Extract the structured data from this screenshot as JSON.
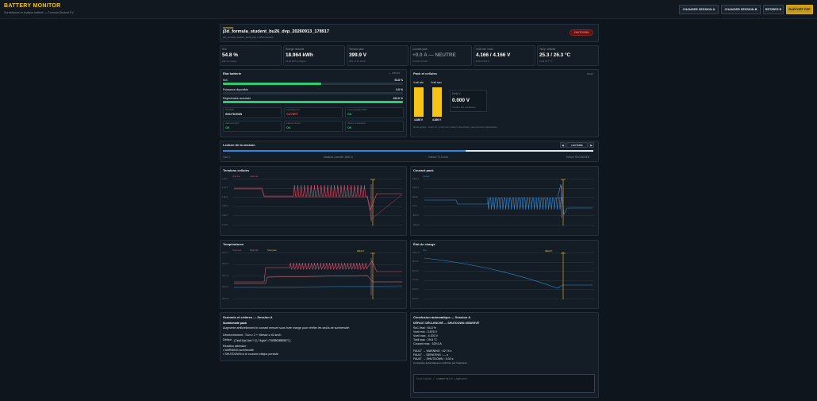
{
  "header": {
    "title": "BATTERY MONITOR",
    "subtitle": "Surveillance et analyse batterie — Formula Student EV",
    "buttons": [
      "CHANGER SESSION A",
      "CHANGER SESSION B",
      "RETIRER B",
      "RAPPORT PDF"
    ]
  },
  "session": {
    "label": "SESSION",
    "name": "j3d_formula_student_bu26_dvp_20260913_178917",
    "sub": "j3d_formula_student_bu26_dvp • 2150 mesures",
    "status": "SHUTDOWN"
  },
  "kpis": [
    {
      "label": "SoC",
      "value": "54.8 %",
      "sub": "État de charge"
    },
    {
      "label": "Énergie restante",
      "value": "18.964 kWh",
      "sub": "34.60 kWh configuré"
    },
    {
      "label": "Tension pack",
      "value": "399.9 V",
      "sub": "96S • 4.16 V/cell"
    },
    {
      "label": "Courant pack",
      "value": "+0.0 A — NEUTRE",
      "sub": "Courbe 0.0 kW"
    },
    {
      "label": "Vcell min / max",
      "value": "4.166 / 4.166 V",
      "sub": "Delta 0.000 V"
    },
    {
      "label": "Temp. cellules",
      "value": "25.3 / 26.3 °C",
      "sub": "Pack 25.7 °C"
    }
  ],
  "etat": {
    "title": "État batterie",
    "time": "~~ 1:58:29.1",
    "rows": [
      {
        "label": "SoC",
        "value": "54.8 %",
        "pct": 54.8
      },
      {
        "label": "Puissance disponible",
        "value": "0.0 %",
        "pct": 0
      },
      {
        "label": "Régénération autorisée",
        "value": "100.0 %",
        "pct": 100
      }
    ],
    "stats": [
      {
        "label": "État BMS",
        "value": "SHUTDOWN",
        "cls": "white"
      },
      {
        "label": "Contacteur HV",
        "value": "OUVERT",
        "cls": "bad"
      },
      {
        "label": "Communication BMS",
        "value": "OK",
        "cls": "ok"
      },
      {
        "label": "Alarme tension",
        "value": "OK",
        "cls": "ok"
      },
      {
        "label": "Alarme courant",
        "value": "OK",
        "cls": "ok"
      },
      {
        "label": "Alarme température",
        "value": "OK",
        "cls": "ok"
      }
    ]
  },
  "pack": {
    "title": "Pack et cellules",
    "badge": "96S1P",
    "vmin_label": "Vcell min",
    "vmax_label": "Vcell max",
    "vmin": "4.166 V",
    "vmax": "4.166 V",
    "vmin_frac": 1.0,
    "vmax_frac": 1.0,
    "delta_label": "Delta V",
    "delta_value": "0.000 V",
    "delta_sub": "Cellules très équilibrées",
    "note": "Mode agrégé : Vcell min / Vcell max / Delta V disponibles, sans tensions individuelles."
  },
  "lecture": {
    "title": "Lecture de la session",
    "btn_prev": "◀",
    "btn_play": "LECTURE",
    "btn_next": "▶",
    "progress": 0.655,
    "tour": "Tour 2",
    "distance": "Distance cumulée 1620 m",
    "vitesse": "Vitesse 73.9 km/h",
    "defaut": "Défaut TRIGGERED"
  },
  "charts": [
    {
      "title": "Tensions cellules",
      "legend": [
        "Vcell min",
        "Vcell max"
      ],
      "ticks": [
        "4.20 V",
        "4.10 V",
        "4.00 V",
        "3.90 V",
        "3.80 V",
        "3.70 V"
      ]
    },
    {
      "title": "Courant pack",
      "legend": [
        "Courant"
      ],
      "ticks": [
        "150.0 A",
        "100.0 A",
        "50.0 A",
        "0.0 A",
        "-50.0 A",
        "-100.0 A"
      ]
    },
    {
      "title": "Températures",
      "legend": [
        "Temp max",
        "Temp min",
        "Temp pack"
      ],
      "ticks": [
        "40.0 °C",
        "35.0 °C",
        "30.0 °C",
        "25.0 °C",
        "20.0 °C"
      ],
      "marker": "DÉFAUT"
    },
    {
      "title": "État de charge",
      "legend": [
        "SoC"
      ],
      "ticks": [
        "100.0 %",
        "90.0 %",
        "80.0 %",
        "70.0 %",
        "60.0 %",
        "50.0 %"
      ],
      "marker": "DÉFAUT"
    }
  ],
  "scenario": {
    "title": "Scénario et critères — Session A",
    "heading": "Surintensité pack",
    "desc": "Augmente artificiellement le courant mesuré sous forte charge pour vérifier les seuils de surintensité.",
    "trigger": "Déclenchement : Tour ≥ 2 + Vitesse ≥ 40 km/h",
    "defaut_label": "Défaut",
    "defaut_code": "{\"multiplier\":2,\"type\":\"OVERCURRENT\"}",
    "reaction": "Réaction attendue :",
    "r1": "• WARNING surintensité",
    "r2": "• SHUTDOWN si le courant critique persiste"
  },
  "conclusion": {
    "title": "Conclusion automatique — Session A",
    "headline": "DÉFAUT DÉCLENCHÉ — SHUTDOWN OBSERVÉ",
    "lines": [
      "SoC final : 54.8 %",
      "Vcell min : 3.878 V",
      "Vcell max : 4.203 V",
      "Tcell max : 29.8 °C",
      "Courant max : 320.0 A"
    ],
    "faults": [
      "FAULT → WARNING : 42.74 s",
      "FAULT → DERATING : — s",
      "FAULT → SHUTDOWN : 3.02 s"
    ],
    "note": "Conclusion automatique à confirmer par l'ingénieur.",
    "placeholder": "Conclusion / commentaire ingénieur"
  },
  "colors": {
    "accent": "#f5c518",
    "ok": "#2ecc71",
    "bad": "#e74c3c",
    "cellmin": "#e05570",
    "current": "#3a8fd6"
  }
}
